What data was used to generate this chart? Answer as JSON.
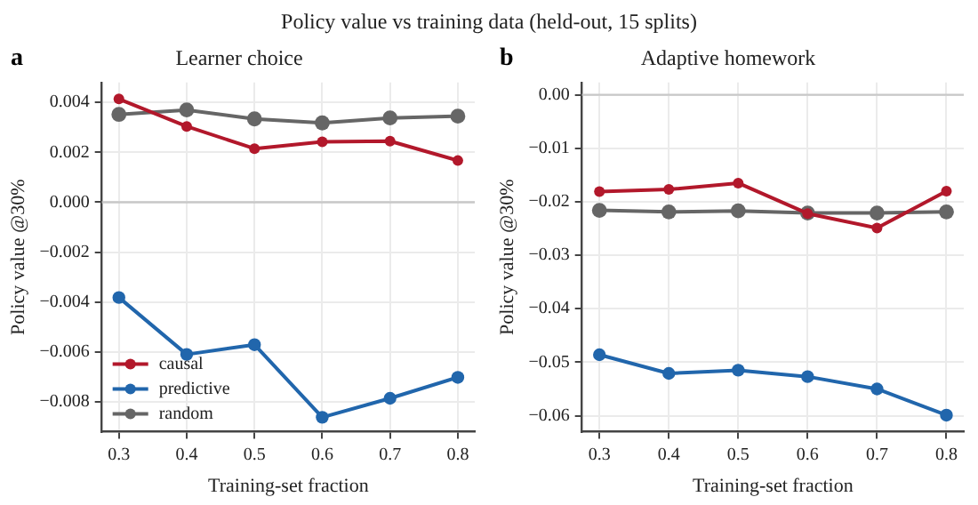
{
  "chart_data": [
    {
      "type": "line",
      "title": "Learner choice",
      "xlabel": "Training-set fraction",
      "ylabel": "Policy value @30%",
      "annotations": [
        "Policy value vs training data (held-out, 15 splits)",
        "a"
      ],
      "x": [
        0.3,
        0.4,
        0.5,
        0.6,
        0.7,
        0.8
      ],
      "series": [
        {
          "name": "causal",
          "color": "#b2182b",
          "values": [
            0.00414,
            0.00304,
            0.00215,
            0.00242,
            0.00245,
            0.00167
          ]
        },
        {
          "name": "predictive",
          "color": "#2166ac",
          "values": [
            -0.00382,
            -0.0061,
            -0.00571,
            -0.00862,
            -0.00786,
            -0.00702
          ]
        },
        {
          "name": "random",
          "color": "#666666",
          "values": [
            0.00352,
            0.0037,
            0.00334,
            0.00318,
            0.00338,
            0.00345
          ]
        }
      ],
      "xlim": [
        0.275,
        0.825
      ],
      "xticks": [
        0.3,
        0.4,
        0.5,
        0.6,
        0.7,
        0.8
      ],
      "ylim": [
        -0.0092,
        0.0048
      ],
      "yticks": [
        -0.008,
        -0.006,
        -0.004,
        -0.002,
        {
          "value": 0,
          "label": "0.000"
        },
        0.002,
        0.004
      ],
      "ref_lines": [
        {
          "axis": "y",
          "value": 0,
          "color": "#c8c8c8"
        }
      ],
      "grid": true,
      "legend": "bottom left",
      "marker": "circle",
      "line_style": "solid"
    },
    {
      "type": "line",
      "title": "Adaptive homework",
      "xlabel": "Training-set fraction",
      "ylabel": "Policy value @30%",
      "annotations": [
        "b"
      ],
      "x": [
        0.3,
        0.4,
        0.5,
        0.6,
        0.7,
        0.8
      ],
      "series": [
        {
          "color": "#b2182b",
          "values": [
            -0.0181,
            -0.0177,
            -0.0165,
            -0.0222,
            -0.0249,
            -0.018
          ]
        },
        {
          "color": "#2166ac",
          "values": [
            -0.0486,
            -0.0521,
            -0.0515,
            -0.0527,
            -0.055,
            -0.0599
          ]
        },
        {
          "color": "#666666",
          "values": [
            -0.0216,
            -0.0219,
            -0.0217,
            -0.0221,
            -0.0221,
            -0.0219
          ]
        }
      ],
      "xlim": [
        0.275,
        0.825
      ],
      "xticks": [
        0.3,
        0.4,
        0.5,
        0.6,
        0.7,
        0.8
      ],
      "ylim": [
        -0.063,
        0.0023
      ],
      "yticks": [
        -0.06,
        -0.05,
        -0.04,
        -0.03,
        -0.02,
        -0.01,
        {
          "value": 0,
          "label": "0.00"
        }
      ],
      "ref_lines": [
        {
          "axis": "y",
          "value": 0,
          "color": "#c8c8c8"
        }
      ],
      "grid": true,
      "legend": false,
      "marker": "circle",
      "line_style": "solid"
    }
  ]
}
